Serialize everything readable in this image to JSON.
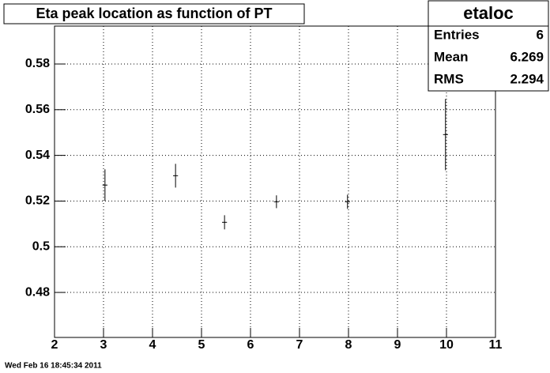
{
  "chart_data": {
    "type": "scatter",
    "title": "Eta peak location as function of PT",
    "x": [
      3.03,
      4.47,
      5.47,
      6.53,
      7.98,
      9.98
    ],
    "xerr": [
      0.05,
      0.05,
      0.05,
      0.05,
      0.05,
      0.05
    ],
    "values": [
      0.527,
      0.5311,
      0.5107,
      0.5197,
      0.5197,
      0.5491
    ],
    "yerr": [
      0.0069,
      0.0052,
      0.0031,
      0.0028,
      0.0031,
      0.0156
    ],
    "color": "#000000",
    "xlim": [
      2,
      11
    ],
    "xticks": [
      2,
      3,
      4,
      5,
      6,
      7,
      8,
      9,
      10,
      11
    ],
    "ylim": [
      0.4603,
      0.5966
    ],
    "yticks": [
      0.48,
      0.5,
      0.52,
      0.54,
      0.56,
      0.58
    ],
    "grid": true,
    "stats": {
      "title": "etaloc",
      "rows": [
        {
          "label": "Entries",
          "value": 6
        },
        {
          "label": "Mean",
          "value": 6.269
        },
        {
          "label": "RMS",
          "value": 2.294
        }
      ]
    },
    "footer": "Wed Feb 16 18:45:34 2011"
  }
}
